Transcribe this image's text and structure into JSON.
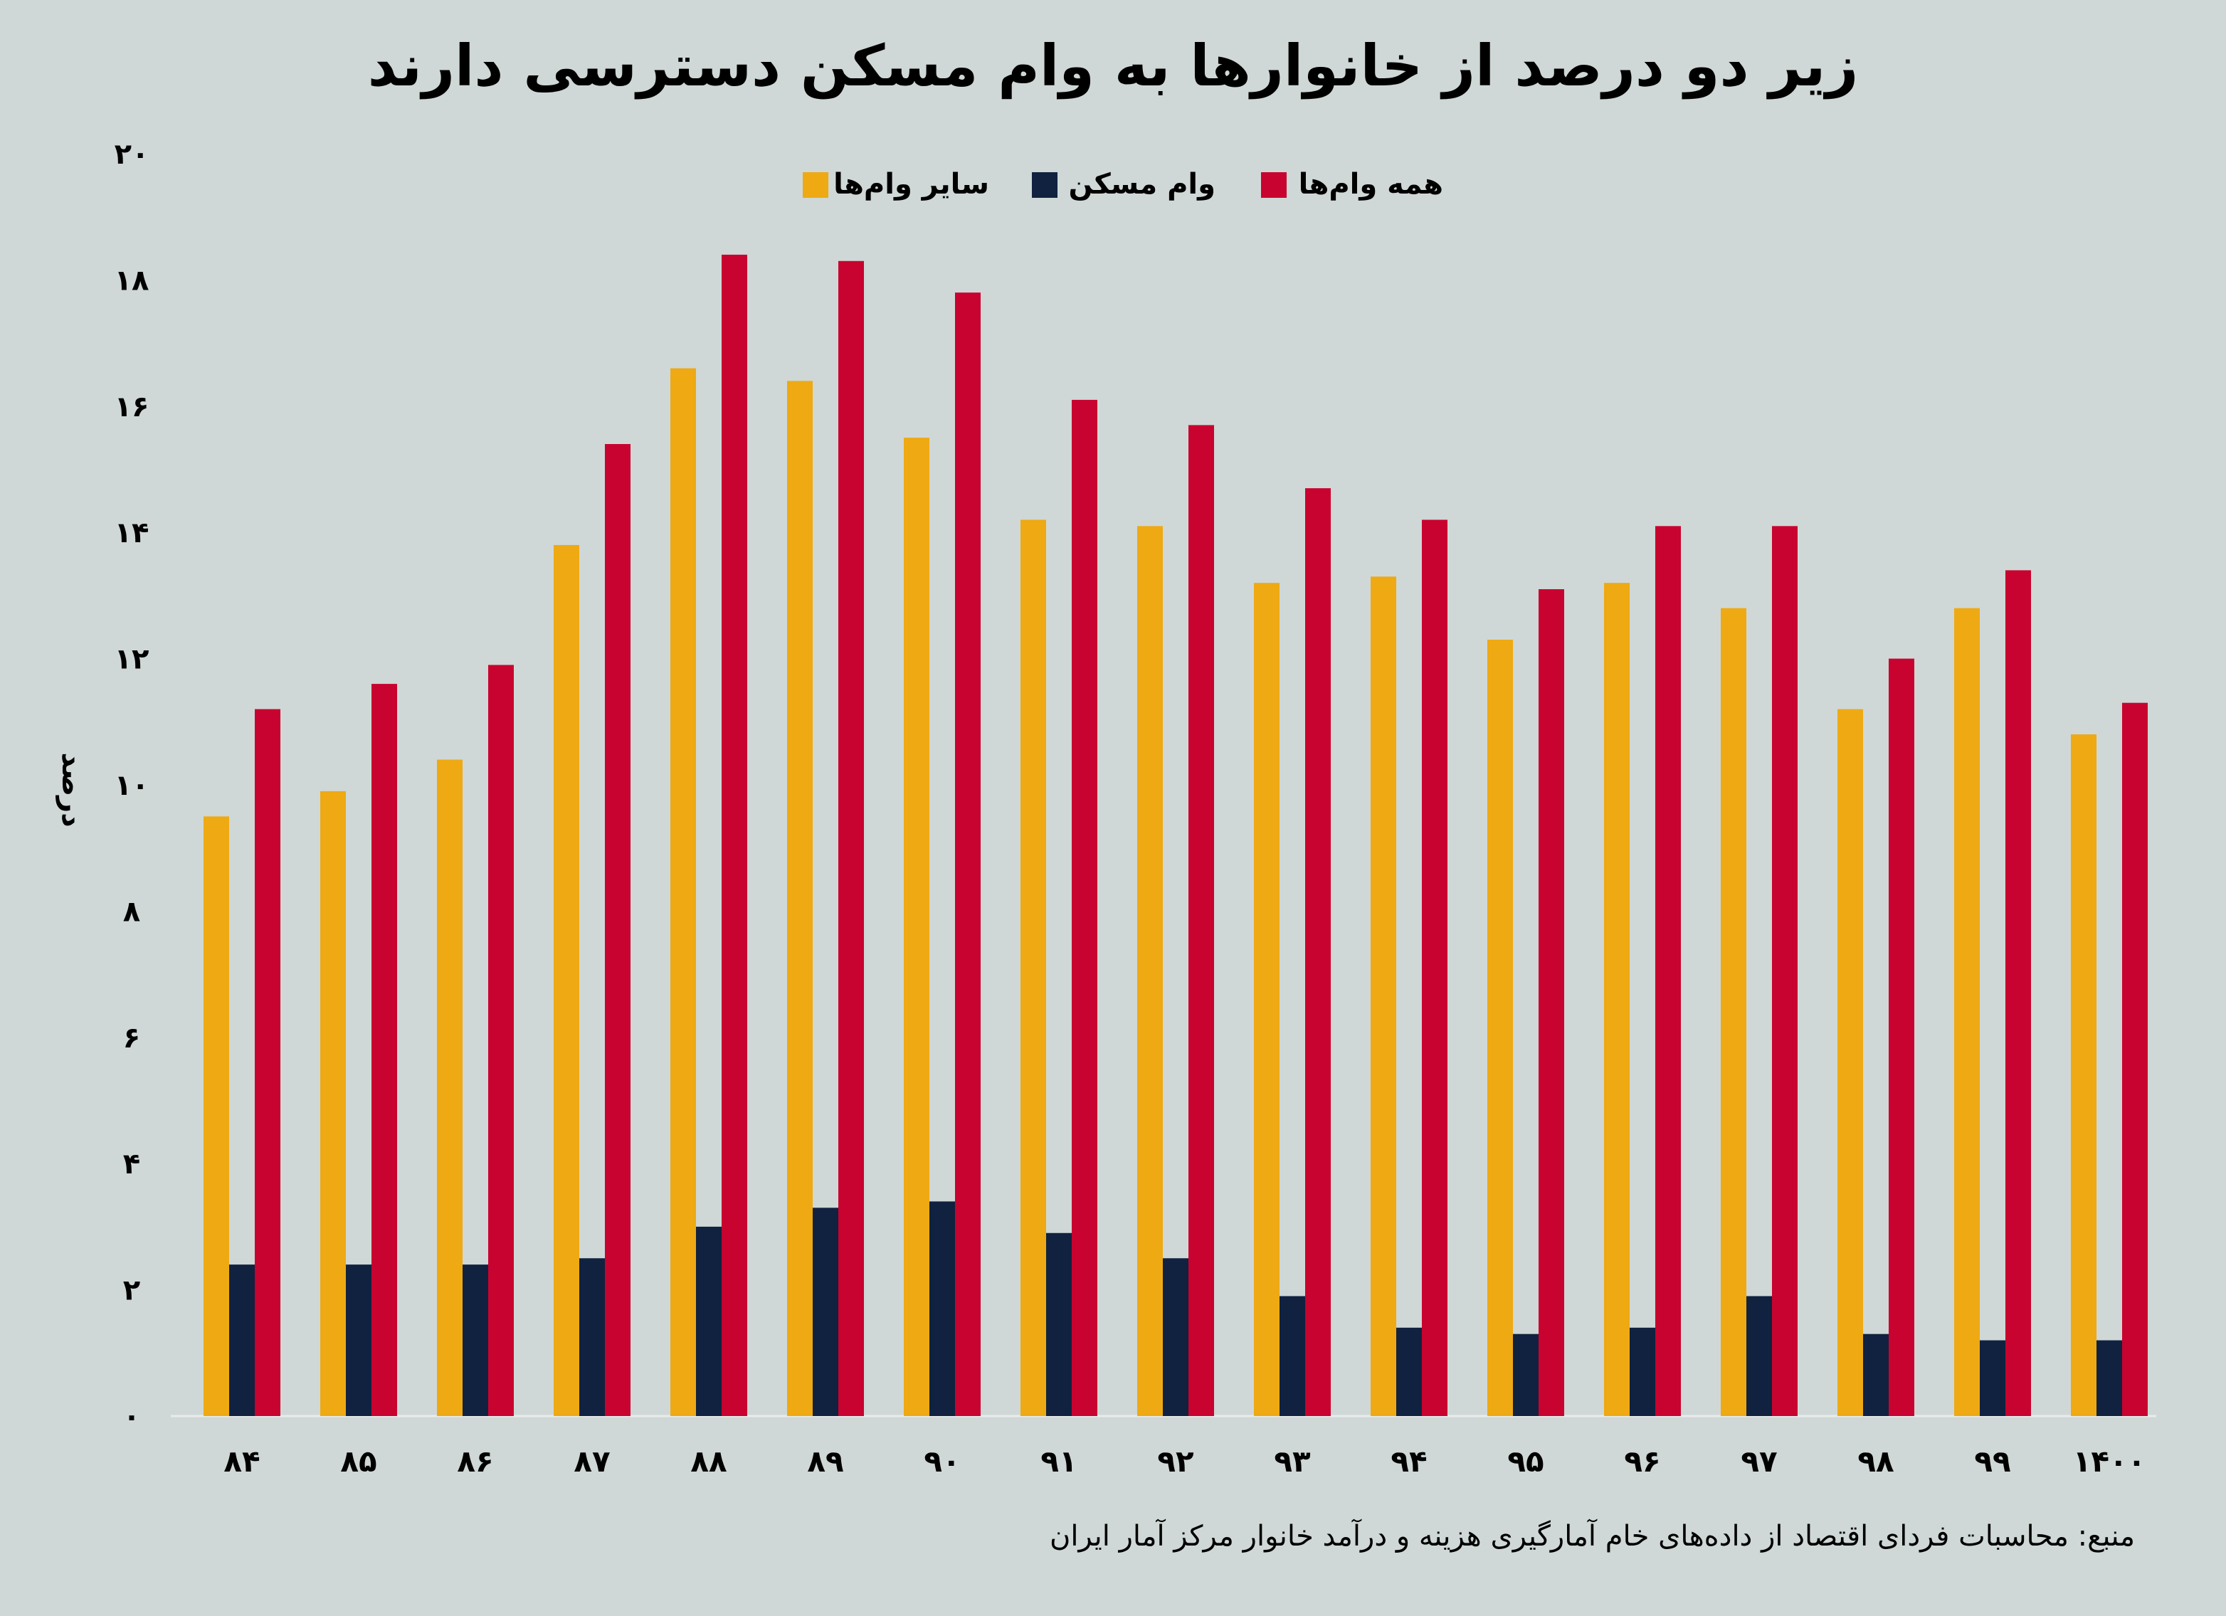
{
  "chart_data": {
    "type": "bar",
    "title": "زیر دو درصد از خانوارها به وام مسکن دسترسی دارند",
    "ylabel": "درصد",
    "xlabel": "",
    "ylim": [
      0,
      20
    ],
    "yticks": [
      0,
      2,
      4,
      6,
      8,
      10,
      12,
      14,
      16,
      18,
      20
    ],
    "ytick_labels": [
      "۰",
      "۲",
      "۴",
      "۶",
      "۸",
      "۱۰",
      "۱۲",
      "۱۴",
      "۱۶",
      "۱۸",
      "۲۰"
    ],
    "categories": [
      "۸۴",
      "۸۵",
      "۸۶",
      "۸۷",
      "۸۸",
      "۸۹",
      "۹۰",
      "۹۱",
      "۹۲",
      "۹۳",
      "۹۴",
      "۹۵",
      "۹۶",
      "۹۷",
      "۹۸",
      "۹۹",
      "۱۴۰۰"
    ],
    "grid": false,
    "legend_position": "top-center",
    "series": [
      {
        "name": "سایر وام‌ها",
        "color": "#eea913",
        "values": [
          9.5,
          9.9,
          10.4,
          13.8,
          16.6,
          16.4,
          15.5,
          14.2,
          14.1,
          13.2,
          13.3,
          12.3,
          13.2,
          12.8,
          11.2,
          12.8,
          10.8
        ]
      },
      {
        "name": "وام مسکن",
        "color": "#10223f",
        "values": [
          2.4,
          2.4,
          2.4,
          2.5,
          3.0,
          3.3,
          3.4,
          2.9,
          2.5,
          1.9,
          1.4,
          1.3,
          1.4,
          1.9,
          1.3,
          1.2,
          1.2
        ]
      },
      {
        "name": "همه وام‌ها",
        "color": "#c8032f",
        "values": [
          11.2,
          11.6,
          11.9,
          15.4,
          18.4,
          18.3,
          17.8,
          16.1,
          15.7,
          14.7,
          14.2,
          13.1,
          14.1,
          14.1,
          12.0,
          13.4,
          11.3
        ]
      }
    ],
    "source": "منبع: محاسبات فردای اقتصاد از داده‌های خام آمارگیری هزینه و درآمد خانوار مرکز آمار ایران"
  }
}
